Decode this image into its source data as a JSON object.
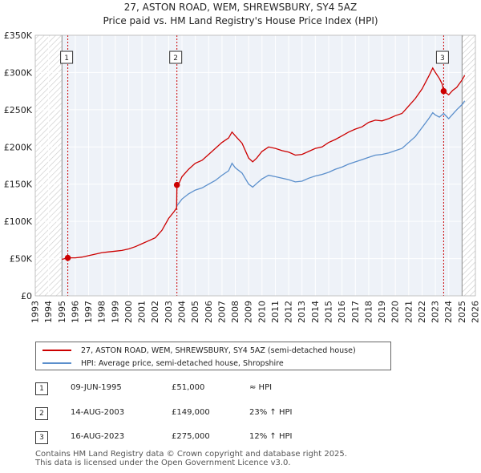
{
  "header": {
    "title_line1": "27, ASTON ROAD, WEM, SHREWSBURY, SY4 5AZ",
    "title_line2": "Price paid vs. HM Land Registry's House Price Index (HPI)"
  },
  "chart_data": {
    "type": "line",
    "title": "27, ASTON ROAD, WEM, SHREWSBURY, SY4 5AZ — Price paid vs. HM Land Registry's House Price Index (HPI)",
    "xlabel": "",
    "ylabel": "",
    "xlim": [
      1993,
      2026
    ],
    "ylim": [
      0,
      350000
    ],
    "x_ticks": [
      1993,
      1994,
      1995,
      1996,
      1997,
      1998,
      1999,
      2000,
      2001,
      2002,
      2003,
      2004,
      2005,
      2006,
      2007,
      2008,
      2009,
      2010,
      2011,
      2012,
      2013,
      2014,
      2015,
      2016,
      2017,
      2018,
      2019,
      2020,
      2021,
      2022,
      2023,
      2024,
      2025,
      2026
    ],
    "y_ticks": [
      {
        "value": 0,
        "label": "£0"
      },
      {
        "value": 50000,
        "label": "£50K"
      },
      {
        "value": 100000,
        "label": "£100K"
      },
      {
        "value": 150000,
        "label": "£150K"
      },
      {
        "value": 200000,
        "label": "£200K"
      },
      {
        "value": 250000,
        "label": "£250K"
      },
      {
        "value": 300000,
        "label": "£300K"
      },
      {
        "value": 350000,
        "label": "£350K"
      }
    ],
    "hatched_ranges": [
      [
        1993,
        1995.0
      ],
      [
        2025.0,
        2026
      ]
    ],
    "grid": true,
    "series": [
      {
        "name": "27, ASTON ROAD, WEM, SHREWSBURY, SY4 5AZ (semi-detached house)",
        "color": "#cc0000",
        "points": [
          [
            1995.0,
            49000
          ],
          [
            1995.44,
            51000
          ],
          [
            1996.0,
            51000
          ],
          [
            1996.5,
            52000
          ],
          [
            1997.0,
            54000
          ],
          [
            1997.5,
            56000
          ],
          [
            1998.0,
            58000
          ],
          [
            1998.5,
            59000
          ],
          [
            1999.0,
            60000
          ],
          [
            1999.5,
            61000
          ],
          [
            2000.0,
            63000
          ],
          [
            2000.5,
            66000
          ],
          [
            2001.0,
            70000
          ],
          [
            2001.5,
            74000
          ],
          [
            2002.0,
            78000
          ],
          [
            2002.5,
            88000
          ],
          [
            2003.0,
            104000
          ],
          [
            2003.4,
            113000
          ],
          [
            2003.6,
            118000
          ],
          [
            2003.62,
            149000
          ],
          [
            2003.8,
            152000
          ],
          [
            2004.0,
            160000
          ],
          [
            2004.5,
            170000
          ],
          [
            2005.0,
            178000
          ],
          [
            2005.5,
            182000
          ],
          [
            2006.0,
            190000
          ],
          [
            2006.5,
            198000
          ],
          [
            2007.0,
            206000
          ],
          [
            2007.5,
            212000
          ],
          [
            2007.75,
            220000
          ],
          [
            2008.0,
            215000
          ],
          [
            2008.5,
            205000
          ],
          [
            2009.0,
            185000
          ],
          [
            2009.3,
            180000
          ],
          [
            2009.6,
            185000
          ],
          [
            2010.0,
            194000
          ],
          [
            2010.5,
            200000
          ],
          [
            2011.0,
            198000
          ],
          [
            2011.5,
            195000
          ],
          [
            2012.0,
            193000
          ],
          [
            2012.5,
            189000
          ],
          [
            2013.0,
            190000
          ],
          [
            2013.5,
            194000
          ],
          [
            2014.0,
            198000
          ],
          [
            2014.5,
            200000
          ],
          [
            2015.0,
            206000
          ],
          [
            2015.5,
            210000
          ],
          [
            2016.0,
            215000
          ],
          [
            2016.5,
            220000
          ],
          [
            2017.0,
            224000
          ],
          [
            2017.5,
            227000
          ],
          [
            2018.0,
            233000
          ],
          [
            2018.5,
            236000
          ],
          [
            2019.0,
            235000
          ],
          [
            2019.5,
            238000
          ],
          [
            2020.0,
            242000
          ],
          [
            2020.5,
            245000
          ],
          [
            2021.0,
            255000
          ],
          [
            2021.5,
            265000
          ],
          [
            2022.0,
            278000
          ],
          [
            2022.5,
            295000
          ],
          [
            2022.8,
            306000
          ],
          [
            2023.0,
            300000
          ],
          [
            2023.3,
            292000
          ],
          [
            2023.5,
            285000
          ],
          [
            2023.62,
            275000
          ],
          [
            2024.0,
            270000
          ],
          [
            2024.3,
            276000
          ],
          [
            2024.6,
            280000
          ],
          [
            2025.0,
            290000
          ],
          [
            2025.2,
            296000
          ]
        ]
      },
      {
        "name": "HPI: Average price, semi-detached house, Shropshire",
        "color": "#5b8fcc",
        "points": [
          [
            2003.62,
            121000
          ],
          [
            2004.0,
            130000
          ],
          [
            2004.5,
            137000
          ],
          [
            2005.0,
            142000
          ],
          [
            2005.5,
            145000
          ],
          [
            2006.0,
            150000
          ],
          [
            2006.5,
            155000
          ],
          [
            2007.0,
            162000
          ],
          [
            2007.5,
            168000
          ],
          [
            2007.75,
            178000
          ],
          [
            2008.0,
            172000
          ],
          [
            2008.5,
            165000
          ],
          [
            2009.0,
            150000
          ],
          [
            2009.3,
            146000
          ],
          [
            2009.6,
            151000
          ],
          [
            2010.0,
            157000
          ],
          [
            2010.5,
            162000
          ],
          [
            2011.0,
            160000
          ],
          [
            2011.5,
            158000
          ],
          [
            2012.0,
            156000
          ],
          [
            2012.5,
            153000
          ],
          [
            2013.0,
            154000
          ],
          [
            2013.5,
            158000
          ],
          [
            2014.0,
            161000
          ],
          [
            2014.5,
            163000
          ],
          [
            2015.0,
            166000
          ],
          [
            2015.5,
            170000
          ],
          [
            2016.0,
            173000
          ],
          [
            2016.5,
            177000
          ],
          [
            2017.0,
            180000
          ],
          [
            2017.5,
            183000
          ],
          [
            2018.0,
            186000
          ],
          [
            2018.5,
            189000
          ],
          [
            2019.0,
            190000
          ],
          [
            2019.5,
            192000
          ],
          [
            2020.0,
            195000
          ],
          [
            2020.5,
            198000
          ],
          [
            2021.0,
            206000
          ],
          [
            2021.5,
            214000
          ],
          [
            2022.0,
            226000
          ],
          [
            2022.5,
            238000
          ],
          [
            2022.8,
            246000
          ],
          [
            2023.0,
            243000
          ],
          [
            2023.3,
            240000
          ],
          [
            2023.62,
            245000
          ],
          [
            2024.0,
            238000
          ],
          [
            2024.3,
            244000
          ],
          [
            2024.6,
            250000
          ],
          [
            2025.0,
            257000
          ],
          [
            2025.2,
            262000
          ]
        ]
      }
    ],
    "sales": [
      {
        "label": "1",
        "x": 1995.44,
        "price": 51000,
        "date": "09-JUN-1995",
        "price_label": "£51,000",
        "hpi_label": "≈ HPI"
      },
      {
        "label": "2",
        "x": 2003.62,
        "price": 149000,
        "date": "14-AUG-2003",
        "price_label": "£149,000",
        "hpi_label": "23% ↑ HPI"
      },
      {
        "label": "3",
        "x": 2023.62,
        "price": 275000,
        "date": "16-AUG-2023",
        "price_label": "£275,000",
        "hpi_label": "12% ↑ HPI"
      }
    ]
  },
  "legend": {
    "items": [
      {
        "label": "27, ASTON ROAD, WEM, SHREWSBURY, SY4 5AZ (semi-detached house)",
        "color": "#cc0000"
      },
      {
        "label": "HPI: Average price, semi-detached house, Shropshire",
        "color": "#5b8fcc"
      }
    ]
  },
  "footer": {
    "line1": "Contains HM Land Registry data © Crown copyright and database right 2025.",
    "line2": "This data is licensed under the Open Government Licence v3.0."
  }
}
